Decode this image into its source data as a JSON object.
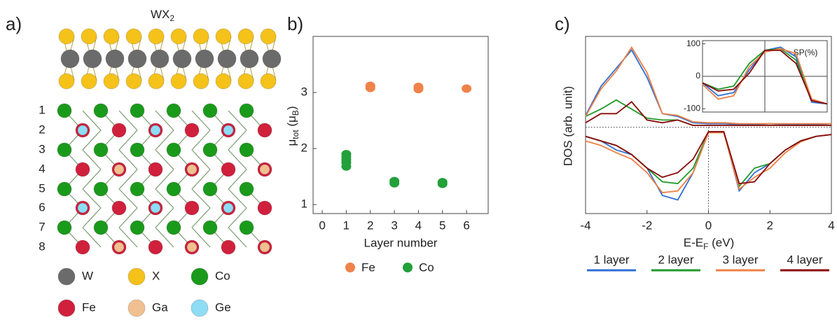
{
  "panel_labels": [
    "a)",
    "b)",
    "c)"
  ],
  "structure": {
    "title_parts": [
      "WX",
      "2"
    ],
    "layer_labels": [
      "1",
      "2",
      "3",
      "4",
      "5",
      "6",
      "7",
      "8"
    ],
    "legend": [
      {
        "label": "W",
        "color": "#6b6b6b"
      },
      {
        "label": "X",
        "color": "#f5c21a"
      },
      {
        "label": "Co",
        "color": "#1a9a1a"
      },
      {
        "label": "Fe",
        "color": "#d0203c"
      },
      {
        "label": "Ga",
        "color": "#f0c090"
      },
      {
        "label": "Ge",
        "color": "#8fdcf5"
      }
    ]
  },
  "chart_data": [
    {
      "type": "scatter",
      "x_label": "Layer number",
      "y_label_parts": [
        "μ",
        "tot",
        " (μ",
        "B",
        ")"
      ],
      "xlim": [
        -0.38,
        6.9
      ],
      "ylim": [
        0.84,
        4.0
      ],
      "xticks": [
        0,
        1,
        2,
        3,
        4,
        5,
        6
      ],
      "yticks": [
        1,
        2,
        3
      ],
      "series": [
        {
          "name": "Fe",
          "color": "#f0824a",
          "x": [
            2,
            2,
            2,
            4,
            4,
            4,
            6
          ],
          "values": [
            3.08,
            3.1,
            3.12,
            3.06,
            3.08,
            3.1,
            3.07
          ]
        },
        {
          "name": "Co",
          "color": "#22a03a",
          "x": [
            1,
            1,
            1,
            1,
            1,
            3,
            3,
            5,
            5
          ],
          "values": [
            1.68,
            1.75,
            1.8,
            1.85,
            1.9,
            1.38,
            1.42,
            1.37,
            1.4
          ]
        }
      ]
    },
    {
      "type": "line",
      "x_label_parts": [
        "E-E",
        "F",
        " (eV)"
      ],
      "y_label": "DOS (arb. unit)",
      "xlim": [
        -4,
        4
      ],
      "ylim": [
        -0.95,
        1
      ],
      "xticks": [
        -4,
        -2,
        0,
        2,
        4
      ],
      "x": [
        -4,
        -3.5,
        -3,
        -2.5,
        -2,
        -1.5,
        -1,
        -0.5,
        0,
        0.5,
        1,
        1.5,
        2,
        2.5,
        3,
        3.5,
        4
      ],
      "inset_label": "SP(%)",
      "inset_xlim": [
        -4,
        4
      ],
      "inset_ylim": [
        -110,
        110
      ],
      "inset_yticks": [
        100,
        0,
        -100
      ],
      "sp_x": [
        -4,
        -3,
        -2,
        -1,
        0,
        1,
        2,
        3,
        4
      ],
      "series": [
        {
          "name": "1 layer",
          "color": "#2f6fd6",
          "values": [
            0.13,
            0.45,
            0.65,
            0.85,
            0.55,
            0.15,
            0.12,
            0.05,
            0.04,
            0.04,
            0.03,
            0.03,
            0.04,
            0.03,
            0.03,
            0.03,
            0.04
          ],
          "values_down": [
            -0.1,
            -0.15,
            -0.25,
            -0.3,
            -0.45,
            -0.75,
            -0.8,
            -0.5,
            -0.05,
            -0.05,
            -0.7,
            -0.5,
            -0.4,
            -0.25,
            -0.15,
            -0.1,
            -0.08
          ],
          "sp_values": [
            -20,
            -60,
            -50,
            20,
            80,
            90,
            60,
            -80,
            -85
          ]
        },
        {
          "name": "2 layer",
          "color": "#1f9a2a",
          "values": [
            0.12,
            0.2,
            0.3,
            0.2,
            0.1,
            0.08,
            0.08,
            0.02,
            0.02,
            0.02,
            0.02,
            0.02,
            0.02,
            0.02,
            0.02,
            0.02,
            0.02
          ],
          "values_down": [
            -0.1,
            -0.15,
            -0.2,
            -0.3,
            -0.45,
            -0.6,
            -0.62,
            -0.45,
            -0.05,
            -0.05,
            -0.65,
            -0.45,
            -0.4,
            -0.25,
            -0.15,
            -0.1,
            -0.08
          ],
          "sp_values": [
            -20,
            -40,
            -30,
            40,
            80,
            85,
            50,
            -75,
            -85
          ]
        },
        {
          "name": "3 layer",
          "color": "#ee8045",
          "values": [
            0.12,
            0.42,
            0.62,
            0.88,
            0.6,
            0.15,
            0.13,
            0.06,
            0.05,
            0.05,
            0.04,
            0.04,
            0.04,
            0.04,
            0.04,
            0.04,
            0.04
          ],
          "values_down": [
            -0.15,
            -0.2,
            -0.28,
            -0.35,
            -0.5,
            -0.72,
            -0.7,
            -0.5,
            -0.06,
            -0.06,
            -0.68,
            -0.55,
            -0.45,
            -0.28,
            -0.16,
            -0.1,
            -0.08
          ],
          "sp_values": [
            -25,
            -70,
            -60,
            30,
            75,
            85,
            70,
            -70,
            -85
          ]
        },
        {
          "name": "4 layer",
          "color": "#8b0a0a",
          "values": [
            0.05,
            0.15,
            0.15,
            0.28,
            0.08,
            0.05,
            0.08,
            0.02,
            0.02,
            0.02,
            0.02,
            0.02,
            0.02,
            0.02,
            0.02,
            0.02,
            0.02
          ],
          "values_down": [
            -0.1,
            -0.15,
            -0.2,
            -0.3,
            -0.45,
            -0.55,
            -0.5,
            -0.35,
            -0.05,
            -0.05,
            -0.62,
            -0.6,
            -0.4,
            -0.25,
            -0.15,
            -0.1,
            -0.08
          ],
          "sp_values": [
            -20,
            -45,
            -40,
            10,
            80,
            80,
            40,
            -75,
            -85
          ]
        }
      ]
    }
  ]
}
